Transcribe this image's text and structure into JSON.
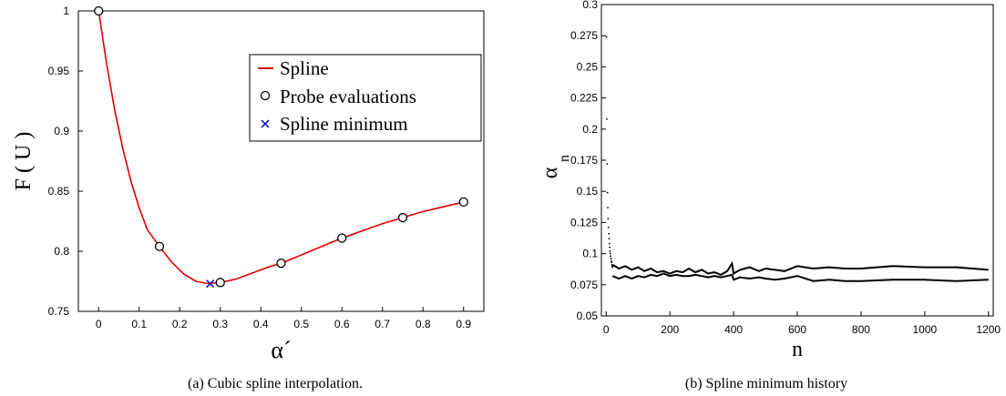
{
  "chart_data": [
    {
      "type": "line",
      "caption": "(a) Cubic spline interpolation.",
      "xlabel": "α´",
      "ylabel": "F ( U )",
      "xlim": [
        -0.05,
        0.95
      ],
      "ylim": [
        0.75,
        1.0
      ],
      "xticks": [
        "0",
        "0.1",
        "0.2",
        "0.3",
        "0.4",
        "0.5",
        "0.6",
        "0.7",
        "0.8",
        "0.9"
      ],
      "yticks": [
        "0.75",
        "0.8",
        "0.85",
        "0.9",
        "0.95",
        "1"
      ],
      "series": [
        {
          "name": "Spline",
          "color": "#e00000",
          "x": [
            0,
            0.02,
            0.04,
            0.06,
            0.08,
            0.1,
            0.12,
            0.15,
            0.18,
            0.21,
            0.24,
            0.27,
            0.3,
            0.34,
            0.38,
            0.42,
            0.45,
            0.5,
            0.55,
            0.6,
            0.65,
            0.7,
            0.75,
            0.8,
            0.85,
            0.9
          ],
          "y": [
            1.0,
            0.955,
            0.917,
            0.885,
            0.858,
            0.836,
            0.818,
            0.804,
            0.791,
            0.781,
            0.775,
            0.773,
            0.774,
            0.777,
            0.782,
            0.787,
            0.79,
            0.797,
            0.804,
            0.811,
            0.817,
            0.823,
            0.828,
            0.833,
            0.837,
            0.841
          ]
        },
        {
          "name": "Probe evaluations",
          "marker": "circle",
          "x": [
            0,
            0.15,
            0.3,
            0.45,
            0.6,
            0.75,
            0.9
          ],
          "y": [
            1.0,
            0.804,
            0.774,
            0.79,
            0.811,
            0.828,
            0.841
          ]
        },
        {
          "name": "Spline minimum",
          "marker": "x",
          "color": "#0000cc",
          "x": [
            0.275
          ],
          "y": [
            0.773
          ]
        }
      ],
      "legend": {
        "placement": "upper-right"
      }
    },
    {
      "type": "scatter",
      "caption": "(b) Spline minimum history",
      "xlabel": "n",
      "ylabel": "α",
      "ylabel_subscript": "n",
      "xlim": [
        -15,
        1215
      ],
      "ylim": [
        0.05,
        0.3
      ],
      "xticks": [
        "0",
        "200",
        "400",
        "600",
        "800",
        "1000",
        "1200"
      ],
      "yticks": [
        "0.05",
        "0.075",
        "0.1",
        "0.125",
        "0.15",
        "0.175",
        "0.2",
        "0.225",
        "0.25",
        "0.275",
        "0.3"
      ],
      "series": [
        {
          "color": "#000000",
          "early_points": {
            "x": [
              1,
              2,
              3,
              4,
              5,
              6,
              7,
              8,
              9,
              10,
              11,
              12,
              13,
              14,
              15,
              16,
              17,
              18,
              19,
              20
            ],
            "y": [
              0.274,
              0.208,
              0.172,
              0.149,
              0.137,
              0.128,
              0.121,
              0.116,
              0.112,
              0.108,
              0.105,
              0.102,
              0.1,
              0.098,
              0.096,
              0.094,
              0.093,
              0.091,
              0.09,
              0.089
            ]
          },
          "upper_band": {
            "x": [
              20,
              40,
              60,
              80,
              100,
              120,
              140,
              160,
              180,
              200,
              220,
              240,
              260,
              280,
              300,
              320,
              340,
              360,
              380,
              395,
              400,
              420,
              450,
              480,
              500,
              530,
              560,
              600,
              650,
              700,
              750,
              800,
              900,
              1000,
              1100,
              1200
            ],
            "y": [
              0.091,
              0.088,
              0.09,
              0.087,
              0.089,
              0.086,
              0.088,
              0.085,
              0.086,
              0.084,
              0.086,
              0.085,
              0.088,
              0.085,
              0.087,
              0.084,
              0.085,
              0.083,
              0.086,
              0.092,
              0.084,
              0.087,
              0.089,
              0.086,
              0.088,
              0.087,
              0.086,
              0.09,
              0.088,
              0.089,
              0.088,
              0.088,
              0.09,
              0.089,
              0.089,
              0.087
            ]
          },
          "lower_band": {
            "x": [
              20,
              40,
              60,
              80,
              100,
              120,
              140,
              160,
              180,
              200,
              220,
              240,
              260,
              280,
              300,
              320,
              340,
              360,
              380,
              395,
              400,
              420,
              450,
              480,
              500,
              530,
              560,
              600,
              650,
              700,
              750,
              800,
              900,
              1000,
              1100,
              1200
            ],
            "y": [
              0.082,
              0.08,
              0.082,
              0.08,
              0.082,
              0.081,
              0.083,
              0.082,
              0.084,
              0.082,
              0.083,
              0.082,
              0.082,
              0.083,
              0.082,
              0.081,
              0.082,
              0.081,
              0.082,
              0.083,
              0.079,
              0.081,
              0.08,
              0.081,
              0.08,
              0.079,
              0.08,
              0.082,
              0.078,
              0.079,
              0.078,
              0.078,
              0.079,
              0.079,
              0.078,
              0.079
            ]
          }
        }
      ]
    }
  ]
}
